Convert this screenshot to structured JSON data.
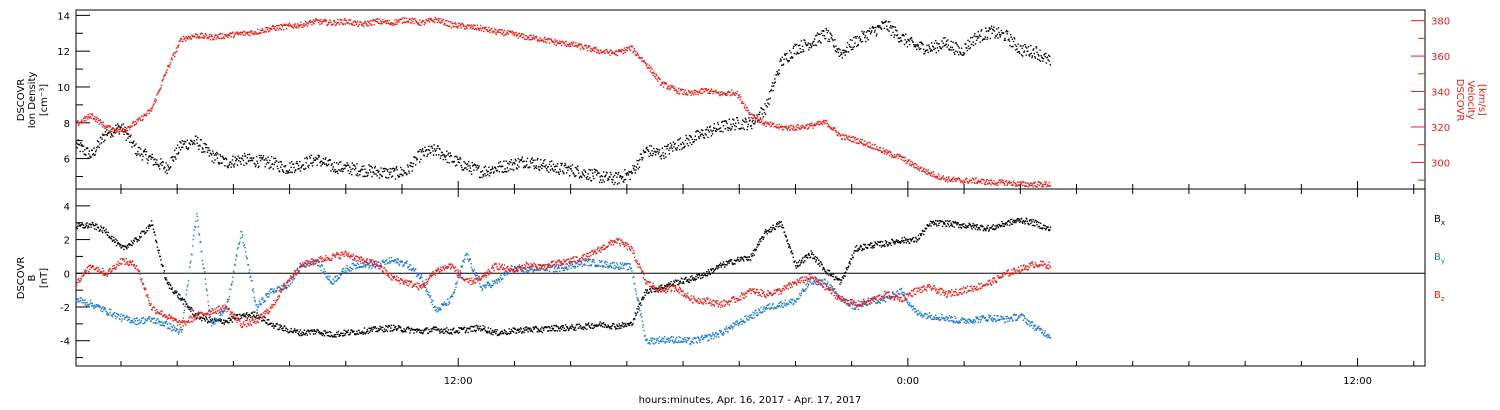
{
  "xlabel": "hours:minutes, Apr. 16, 2017 - Apr. 17, 2017",
  "x_tick_labels": [
    {
      "hour": 12,
      "label": "12:00"
    },
    {
      "hour": 24,
      "label": "0:00"
    },
    {
      "hour": 36,
      "label": "12:00"
    }
  ],
  "x_range_hours": [
    1.8,
    37.8
  ],
  "colors": {
    "black": "#000000",
    "red": "#e8201c",
    "blue": "#1a7ad4"
  },
  "chart_data": [
    {
      "type": "scatter",
      "panel": "top",
      "ylabel_left": [
        "DSCOVR",
        "Ion Density",
        "[cm⁻³]"
      ],
      "ylabel_right": [
        "DSCOVR",
        "Velocity",
        "[km/s]"
      ],
      "ylim_left": [
        4.3,
        14.3
      ],
      "yticks_left": [
        6,
        8,
        10,
        12,
        14
      ],
      "ylim_right": [
        285,
        386
      ],
      "yticks_right": [
        300,
        320,
        340,
        360,
        380
      ],
      "grid": false,
      "series": [
        {
          "axis": "left",
          "color": "#000000",
          "x": [
            1.8,
            2.2,
            2.6,
            3.0,
            3.4,
            3.8,
            4.2,
            4.6,
            5.0,
            5.4,
            5.8,
            6.2,
            6.6,
            7.0,
            7.4,
            7.8,
            8.2,
            8.6,
            9.0,
            9.4,
            9.8,
            10.2,
            10.6,
            11.0,
            11.4,
            11.8,
            12.2,
            12.6,
            13.0,
            13.4,
            13.8,
            14.2,
            14.6,
            15.0,
            15.4,
            15.8,
            16.2,
            16.6,
            17.0,
            17.4,
            17.8,
            18.2,
            18.6,
            19.0,
            19.4,
            19.8,
            20.2,
            20.6,
            21.0,
            21.4,
            21.8,
            22.2,
            22.6,
            23.0,
            23.4,
            23.8,
            24.2,
            24.6,
            25.0,
            25.4,
            25.8,
            26.2,
            26.6,
            27.0,
            27.4,
            27.8
          ],
          "y": [
            6.8,
            6.2,
            7.5,
            7.8,
            6.5,
            6.0,
            5.5,
            6.8,
            7.0,
            6.2,
            5.8,
            6.0,
            5.9,
            5.8,
            5.5,
            5.7,
            6.0,
            5.6,
            5.5,
            5.4,
            5.3,
            5.2,
            5.3,
            6.3,
            6.5,
            6.0,
            5.6,
            5.3,
            5.5,
            5.7,
            5.9,
            5.7,
            5.5,
            5.4,
            5.2,
            5.0,
            4.9,
            5.2,
            6.5,
            6.3,
            6.8,
            7.1,
            7.5,
            7.8,
            8.0,
            8.0,
            8.9,
            11.4,
            12.2,
            12.5,
            13.0,
            11.9,
            12.6,
            13.1,
            13.5,
            12.8,
            12.3,
            12.2,
            12.5,
            12.0,
            12.8,
            13.1,
            12.9,
            12.1,
            12.0,
            11.4
          ]
        },
        {
          "axis": "right",
          "color": "#e8201c",
          "x": [
            1.8,
            2.2,
            2.6,
            3.0,
            3.4,
            3.8,
            4.2,
            4.6,
            5.0,
            5.4,
            5.8,
            6.2,
            6.6,
            7.0,
            7.4,
            7.8,
            8.2,
            8.6,
            9.0,
            9.4,
            9.8,
            10.2,
            10.6,
            11.0,
            11.4,
            11.8,
            12.2,
            12.6,
            13.0,
            13.4,
            13.8,
            14.2,
            14.6,
            15.0,
            15.4,
            15.8,
            16.2,
            16.6,
            17.0,
            17.4,
            17.8,
            18.2,
            18.6,
            19.0,
            19.4,
            19.8,
            20.2,
            20.6,
            21.0,
            21.4,
            21.8,
            22.2,
            22.6,
            23.0,
            23.4,
            23.8,
            24.2,
            24.6,
            25.0,
            25.4,
            25.8,
            26.2,
            26.6,
            27.0,
            27.4,
            27.8
          ],
          "y": [
            322,
            327,
            320,
            318,
            323,
            330,
            352,
            370,
            372,
            371,
            372,
            373,
            374,
            376,
            377,
            378,
            380,
            379,
            380,
            378,
            380,
            379,
            381,
            379,
            381,
            378,
            377,
            376,
            374,
            373,
            371,
            370,
            368,
            367,
            365,
            363,
            362,
            365,
            356,
            345,
            341,
            339,
            341,
            339,
            340,
            327,
            322,
            320,
            320,
            321,
            323,
            315,
            313,
            310,
            306,
            303,
            298,
            294,
            291,
            290,
            290,
            289,
            289,
            288,
            288,
            288
          ]
        }
      ]
    },
    {
      "type": "scatter",
      "panel": "bottom",
      "ylabel_left": [
        "DSCOVR",
        "B",
        "[nT]"
      ],
      "ylim": [
        -5.5,
        5.0
      ],
      "yticks": [
        -4,
        -2,
        0,
        2,
        4
      ],
      "zero_line": true,
      "grid": false,
      "legend_position": "right",
      "legend": [
        {
          "text": "B",
          "sub": "x",
          "color": "#000000"
        },
        {
          "text": "B",
          "sub": "y",
          "color": "#1a7ad4"
        },
        {
          "text": "B",
          "sub": "z",
          "color": "#e8201c"
        }
      ],
      "series": [
        {
          "name": "Bx",
          "color": "#000000",
          "x": [
            1.8,
            2.2,
            2.6,
            3.0,
            3.4,
            3.8,
            4.2,
            4.6,
            5.0,
            5.4,
            5.8,
            6.2,
            6.6,
            7.0,
            7.4,
            7.8,
            8.2,
            8.6,
            9.0,
            9.4,
            9.8,
            10.2,
            10.6,
            11.0,
            11.4,
            11.8,
            12.2,
            12.6,
            13.0,
            13.4,
            13.8,
            14.2,
            14.6,
            15.0,
            15.4,
            15.8,
            16.2,
            16.6,
            17.0,
            17.4,
            17.8,
            18.2,
            18.6,
            19.0,
            19.4,
            19.8,
            20.2,
            20.6,
            21.0,
            21.4,
            21.8,
            22.2,
            22.6,
            23.0,
            23.4,
            23.8,
            24.2,
            24.6,
            25.0,
            25.4,
            25.8,
            26.2,
            26.6,
            27.0,
            27.4,
            27.8
          ],
          "y": [
            2.8,
            2.9,
            2.5,
            1.5,
            2.0,
            3.0,
            -0.5,
            -1.5,
            -2.5,
            -2.8,
            -2.8,
            -2.5,
            -2.4,
            -3.0,
            -3.3,
            -3.5,
            -3.4,
            -3.6,
            -3.5,
            -3.4,
            -3.3,
            -3.2,
            -3.3,
            -3.4,
            -3.3,
            -3.4,
            -3.3,
            -3.2,
            -3.5,
            -3.4,
            -3.3,
            -3.3,
            -3.2,
            -3.2,
            -3.1,
            -3.0,
            -3.1,
            -3.0,
            -1.0,
            -0.8,
            -0.5,
            -0.3,
            0.0,
            0.5,
            0.8,
            1.0,
            2.5,
            3.0,
            0.5,
            1.2,
            0.2,
            -0.5,
            1.5,
            1.7,
            1.8,
            2.0,
            2.0,
            3.0,
            3.0,
            2.9,
            2.8,
            2.7,
            3.0,
            3.2,
            3.0,
            2.6
          ]
        },
        {
          "name": "By",
          "color": "#1a7ad4",
          "x": [
            1.8,
            2.2,
            2.6,
            3.0,
            3.4,
            3.8,
            4.2,
            4.6,
            5.0,
            5.4,
            5.8,
            6.2,
            6.6,
            7.0,
            7.4,
            7.8,
            8.2,
            8.6,
            9.0,
            9.4,
            9.8,
            10.2,
            10.6,
            11.0,
            11.4,
            11.8,
            12.2,
            12.6,
            13.0,
            13.4,
            13.8,
            14.2,
            14.6,
            15.0,
            15.4,
            15.8,
            16.2,
            16.6,
            17.0,
            17.4,
            17.8,
            18.2,
            18.6,
            19.0,
            19.4,
            19.8,
            20.2,
            20.6,
            21.0,
            21.4,
            21.8,
            22.2,
            22.6,
            23.0,
            23.4,
            23.8,
            24.2,
            24.6,
            25.0,
            25.4,
            25.8,
            26.2,
            26.6,
            27.0,
            27.4,
            27.8
          ],
          "y": [
            -1.5,
            -1.8,
            -2.2,
            -2.6,
            -2.8,
            -2.7,
            -3.0,
            -3.5,
            3.5,
            -3.0,
            -2.0,
            2.5,
            -2.0,
            -1.0,
            -0.8,
            0.5,
            0.8,
            -0.5,
            0.3,
            0.6,
            0.5,
            0.8,
            0.6,
            -0.2,
            -2.2,
            -1.5,
            1.2,
            -0.8,
            -0.5,
            0.3,
            0.2,
            0.4,
            0.3,
            0.5,
            0.7,
            0.6,
            0.5,
            0.4,
            -4.0,
            -3.9,
            -3.9,
            -4.0,
            -3.8,
            -3.5,
            -3.0,
            -2.5,
            -2.0,
            -1.8,
            -1.6,
            -0.4,
            -0.5,
            -1.5,
            -2.0,
            -1.6,
            -1.5,
            -1.0,
            -2.3,
            -2.5,
            -2.6,
            -2.8,
            -2.7,
            -2.6,
            -2.7,
            -2.5,
            -3.2,
            -3.7
          ]
        },
        {
          "name": "Bz",
          "color": "#e8201c",
          "x": [
            1.8,
            2.2,
            2.6,
            3.0,
            3.4,
            3.8,
            4.2,
            4.6,
            5.0,
            5.4,
            5.8,
            6.2,
            6.6,
            7.0,
            7.4,
            7.8,
            8.2,
            8.6,
            9.0,
            9.4,
            9.8,
            10.2,
            10.6,
            11.0,
            11.4,
            11.8,
            12.2,
            12.6,
            13.0,
            13.4,
            13.8,
            14.2,
            14.6,
            15.0,
            15.4,
            15.8,
            16.2,
            16.6,
            17.0,
            17.4,
            17.8,
            18.2,
            18.6,
            19.0,
            19.4,
            19.8,
            20.2,
            20.6,
            21.0,
            21.4,
            21.8,
            22.2,
            22.6,
            23.0,
            23.4,
            23.8,
            24.2,
            24.6,
            25.0,
            25.4,
            25.8,
            26.2,
            26.6,
            27.0,
            27.4,
            27.8
          ],
          "y": [
            -0.5,
            0.5,
            0.0,
            0.8,
            0.5,
            -2.0,
            -2.5,
            -3.0,
            -2.5,
            -2.2,
            -2.0,
            -3.0,
            -2.8,
            -2.0,
            -0.5,
            0.5,
            0.8,
            1.0,
            1.2,
            0.8,
            0.6,
            -0.2,
            -0.5,
            -0.8,
            0.2,
            0.5,
            -0.5,
            -0.3,
            0.5,
            0.2,
            0.5,
            0.4,
            0.6,
            0.8,
            1.0,
            1.5,
            2.0,
            1.5,
            -0.5,
            -1.0,
            -0.8,
            -1.5,
            -1.6,
            -1.8,
            -1.5,
            -1.0,
            -1.2,
            -1.0,
            -0.5,
            -0.2,
            -0.8,
            -1.5,
            -1.8,
            -1.6,
            -1.2,
            -1.5,
            -1.0,
            -0.8,
            -1.2,
            -1.0,
            -0.8,
            -0.5,
            0.0,
            0.3,
            0.6,
            0.5
          ]
        }
      ]
    }
  ]
}
